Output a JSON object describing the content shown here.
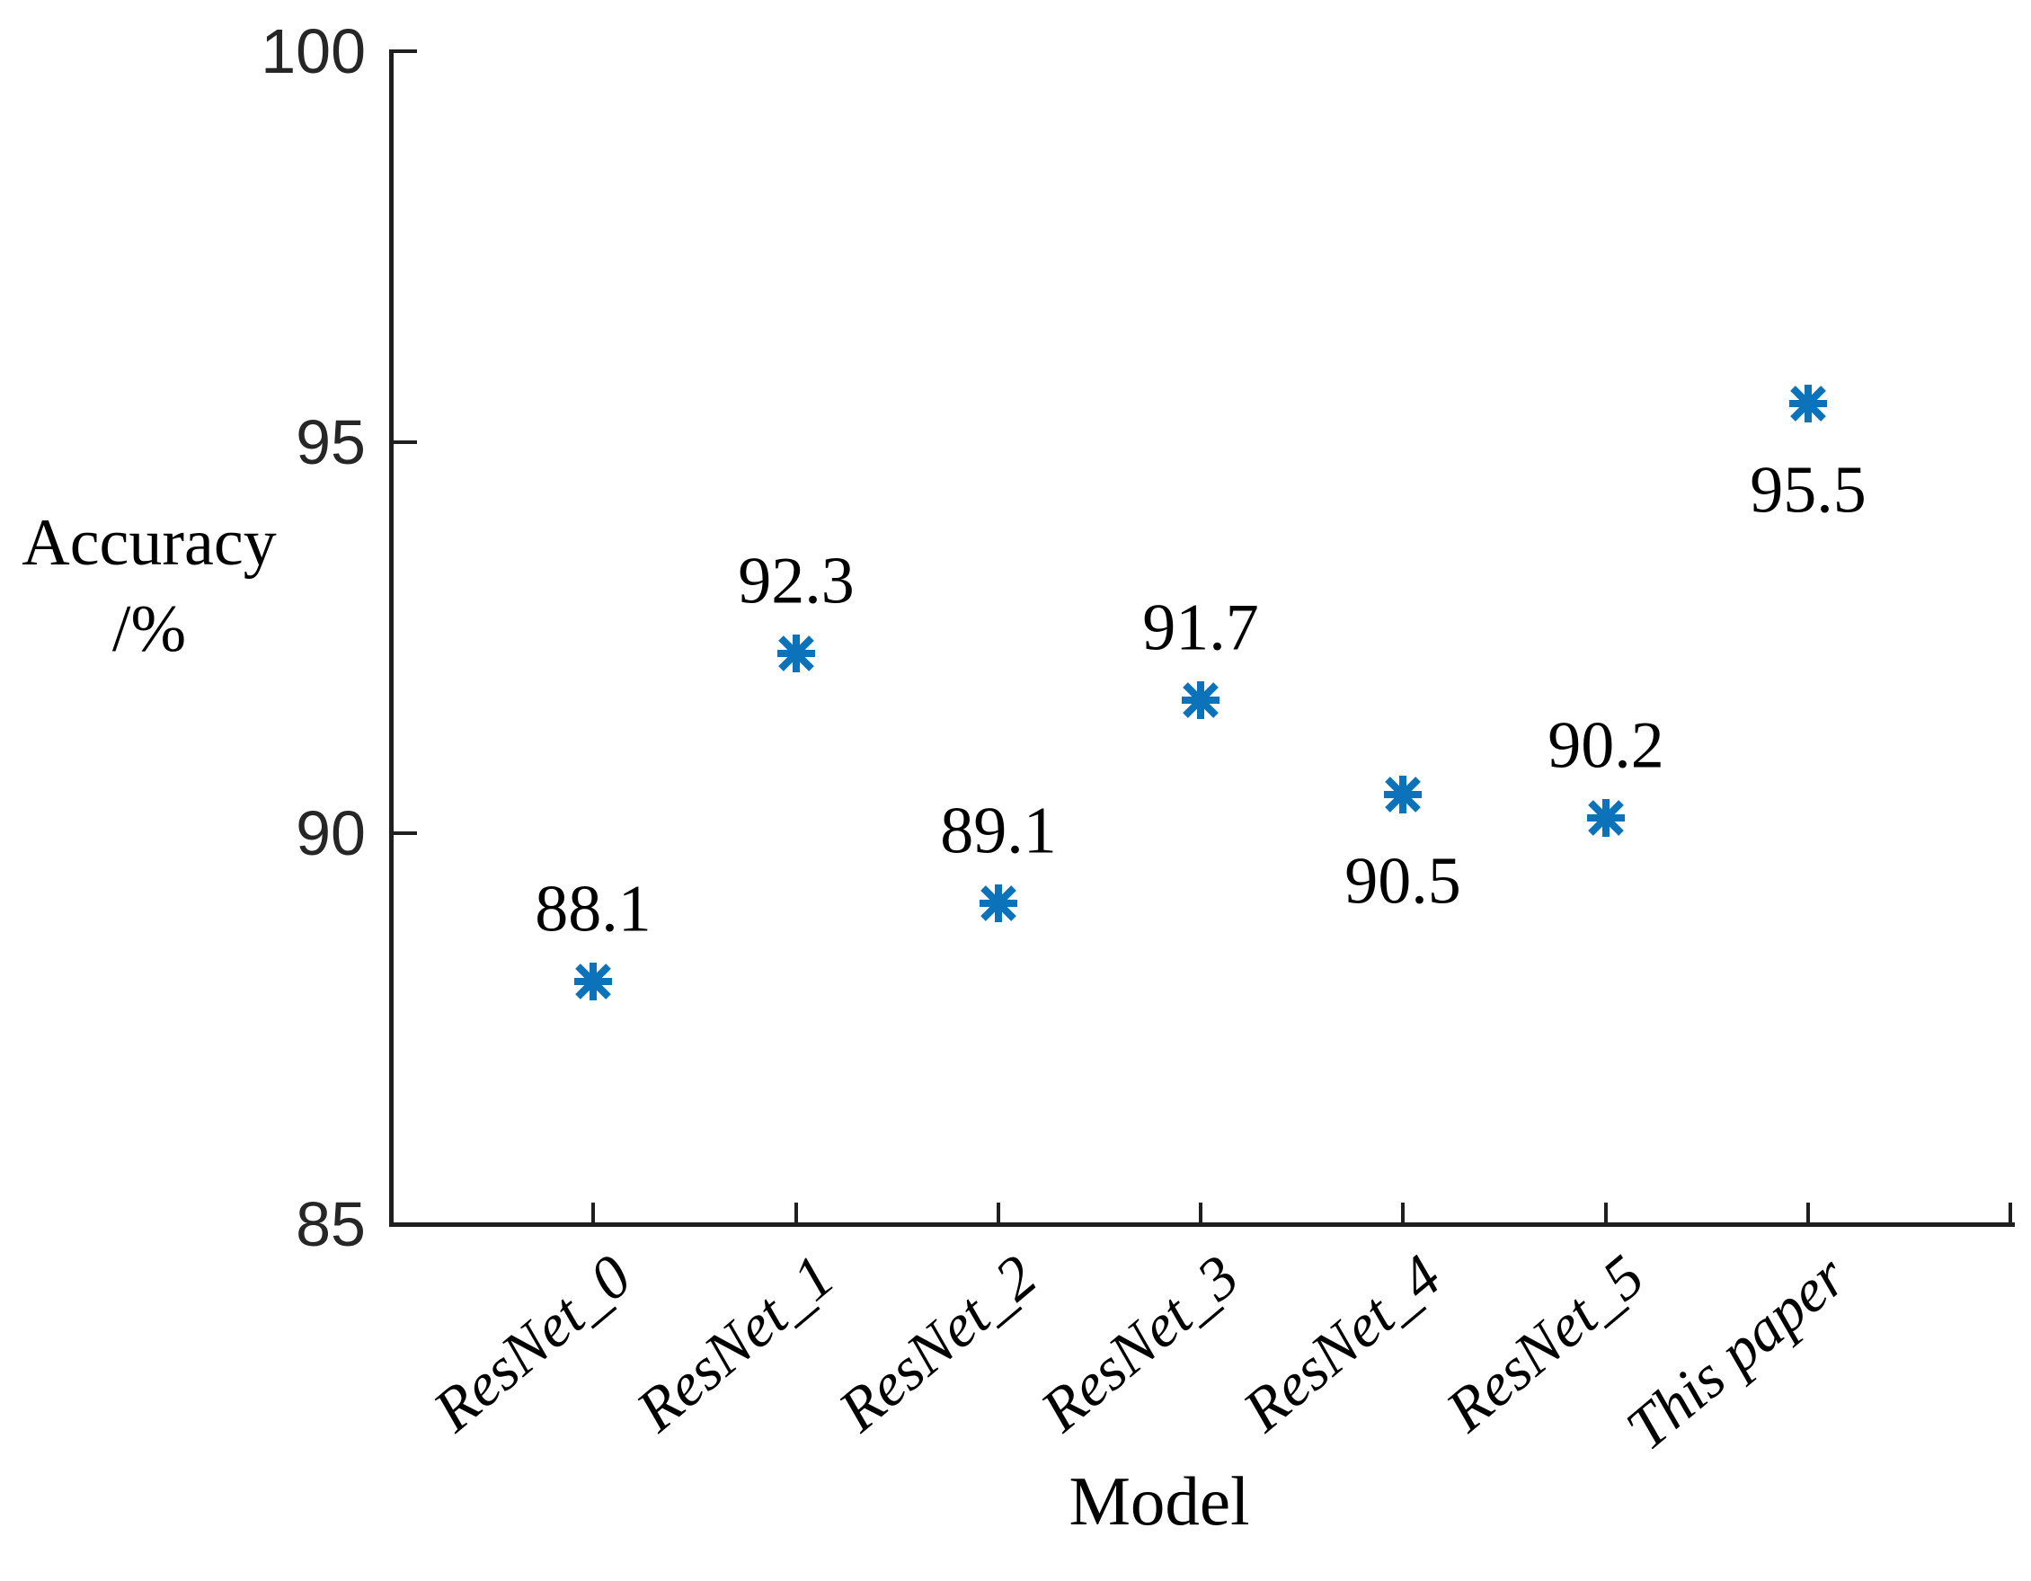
{
  "labels": {
    "xlabel": "Model",
    "ylabel_line1": "Accuracy",
    "ylabel_line2": "/%"
  },
  "chart_data": {
    "type": "scatter",
    "title": "",
    "xlabel": "Model",
    "ylabel": "Accuracy /%",
    "categories": [
      "ResNet_0",
      "ResNet_1",
      "ResNet_2",
      "ResNet_3",
      "ResNet_4",
      "ResNet_5",
      "This paper"
    ],
    "values": [
      88.1,
      92.3,
      89.1,
      91.7,
      90.5,
      90.2,
      95.5
    ],
    "point_labels": [
      "88.1",
      "92.3",
      "89.1",
      "91.7",
      "90.5",
      "90.2",
      "95.5"
    ],
    "label_positions": [
      "above",
      "above",
      "above",
      "above",
      "below",
      "above",
      "below"
    ],
    "ylim": [
      85,
      100
    ],
    "yticks": [
      85,
      90,
      95,
      100
    ],
    "ytick_labels": [
      "85",
      "90",
      "95",
      "100"
    ],
    "xtick_rotation_deg": -40,
    "marker": "asterisk",
    "marker_color": "#0C73BA",
    "axis_color": "#1f1f1f",
    "grid": false,
    "legend": null
  }
}
